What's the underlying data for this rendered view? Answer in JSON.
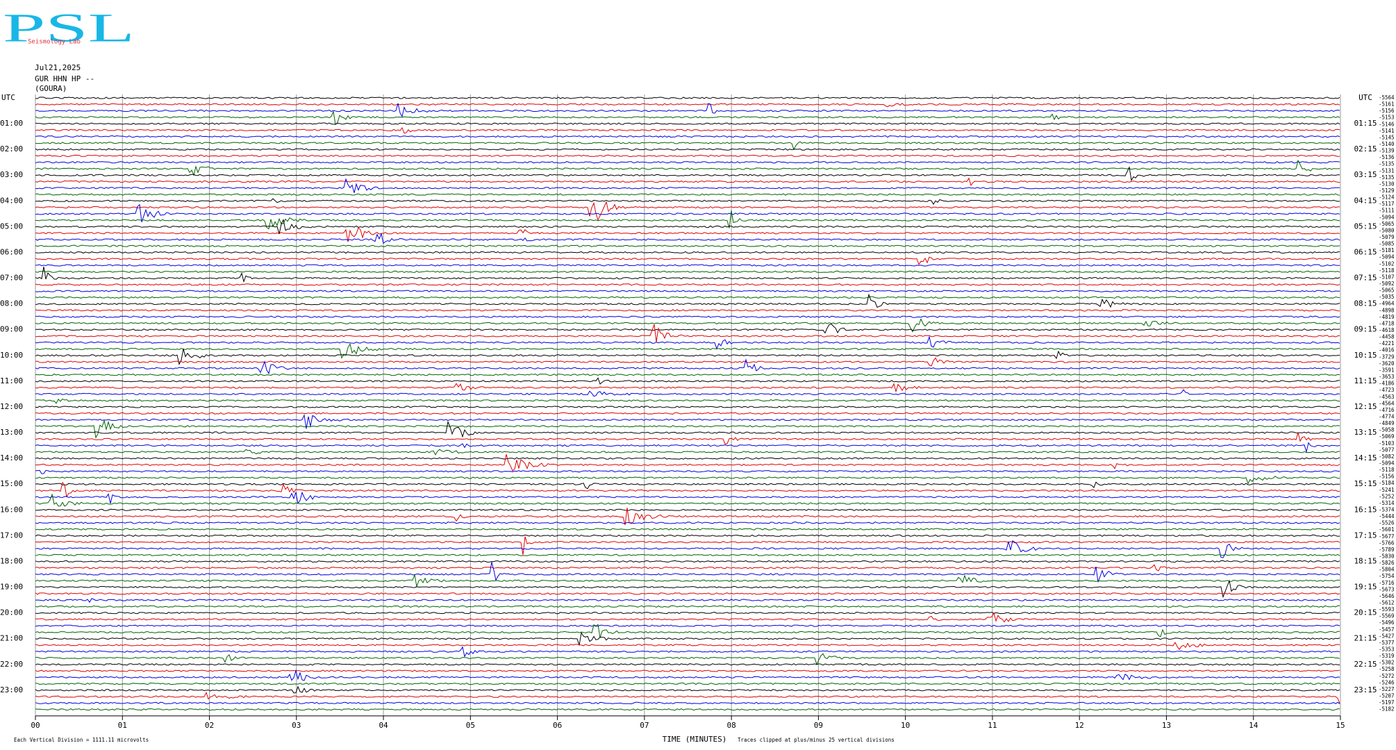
{
  "chart_data": {
    "type": "helicorder",
    "logo": "PSL",
    "logo_subtitle": "Seismology Lab",
    "date": "Jul21,2025",
    "station": "GUR HHN HP --",
    "site": "(GOURA)",
    "xlabel": "TIME (MINUTES)",
    "xlim": [
      0,
      15
    ],
    "xticks": [
      {
        "value": 0,
        "label": "00"
      },
      {
        "value": 1,
        "label": "01"
      },
      {
        "value": 2,
        "label": "02"
      },
      {
        "value": 3,
        "label": "03"
      },
      {
        "value": 4,
        "label": "04"
      },
      {
        "value": 5,
        "label": "05"
      },
      {
        "value": 6,
        "label": "06"
      },
      {
        "value": 7,
        "label": "07"
      },
      {
        "value": 8,
        "label": "08"
      },
      {
        "value": 9,
        "label": "09"
      },
      {
        "value": 10,
        "label": "10"
      },
      {
        "value": 11,
        "label": "11"
      },
      {
        "value": 12,
        "label": "12"
      },
      {
        "value": 13,
        "label": "13"
      },
      {
        "value": 14,
        "label": "14"
      },
      {
        "value": 15,
        "label": "15"
      }
    ],
    "left_labels": [
      "UTC",
      "01:00",
      "02:00",
      "03:00",
      "04:00",
      "05:00",
      "06:00",
      "07:00",
      "08:00",
      "09:00",
      "10:00",
      "11:00",
      "12:00",
      "13:00",
      "14:00",
      "15:00",
      "16:00",
      "17:00",
      "18:00",
      "19:00",
      "20:00",
      "21:00",
      "22:00",
      "23:00"
    ],
    "right_labels": [
      "UTC",
      "01:15",
      "02:15",
      "03:15",
      "04:15",
      "05:15",
      "06:15",
      "07:15",
      "08:15",
      "09:15",
      "10:15",
      "11:15",
      "12:15",
      "13:15",
      "14:15",
      "15:15",
      "16:15",
      "17:15",
      "18:15",
      "19:15",
      "20:15",
      "21:15",
      "22:15",
      "23:15"
    ],
    "trace_labels": [
      "-5564",
      "-5161",
      "-5156",
      "-5153",
      "-5146",
      "-5141",
      "-5145",
      "-5140",
      "-5139",
      "-5136",
      "-5135",
      "-5131",
      "-5135",
      "-5130",
      "-5129",
      "-5124",
      "-5117",
      "-5111",
      "-5094",
      "-5065",
      "-5080",
      "-5079",
      "-5085",
      "-5181",
      "-5094",
      "-5102",
      "-5118",
      "-5107",
      "-5092",
      "-5065",
      "-5035",
      "-4964",
      "-4898",
      "-4819",
      "-4718",
      "-4618",
      "-4458",
      "-4221",
      "-4016",
      "-3729",
      "-3620",
      "-3591",
      "-3653",
      "-4186",
      "-4723",
      "-4563",
      "-4564",
      "-4716",
      "-4774",
      "-4849",
      "-5058",
      "-5069",
      "-5103",
      "-5077",
      "-5082",
      "-5094",
      "-5118",
      "-5156",
      "-5184",
      "-5241",
      "-5252",
      "-5314",
      "-5374",
      "-5444",
      "-5526",
      "-5601",
      "-5677",
      "-5766",
      "-5789",
      "-5830",
      "-5826",
      "-5804",
      "-5754",
      "-5716",
      "-5673",
      "-5646",
      "-5612",
      "-5593",
      "-5569",
      "-5496",
      "-5457",
      "-5427",
      "-5377",
      "-5353",
      "-5319",
      "-5302",
      "-5258",
      "-5272",
      "-5246",
      "-5227",
      "-5207",
      "-5197",
      "-5182"
    ],
    "trace_colors": [
      "#000000",
      "#e00000",
      "#0000e0",
      "#006400"
    ],
    "scale_note": "Each Vertical Division = 1111.11 microvolts",
    "clip_note": "Traces clipped at plus/minus 25 vertical divisions"
  }
}
